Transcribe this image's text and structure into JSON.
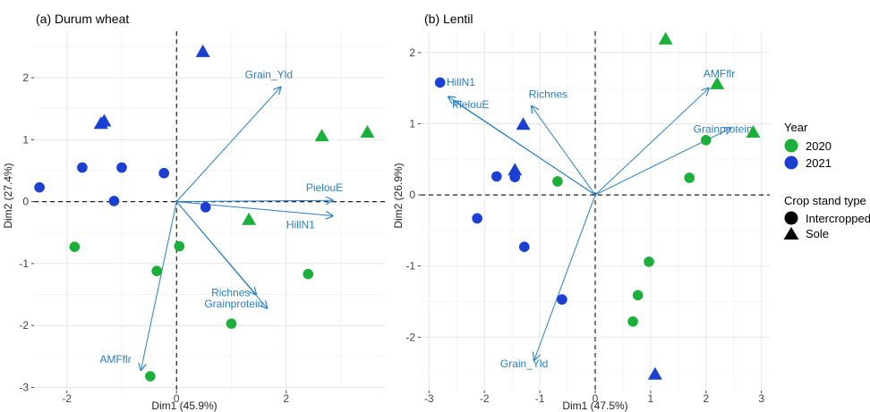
{
  "chart_data": [
    {
      "type": "scatter",
      "title": "(a) Durum wheat",
      "xlabel": "Dim1 (45.9%)",
      "ylabel": "Dim2 (27.4%)",
      "xlim": [
        -2.6,
        3.8
      ],
      "ylim": [
        -3.05,
        2.75
      ],
      "xticks": [
        -2,
        0,
        2
      ],
      "yticks": [
        -3,
        -2,
        -1,
        0,
        1,
        2
      ],
      "grid": true,
      "points": [
        {
          "x": 0.48,
          "y": 2.42,
          "year": "2021",
          "stand": "Sole"
        },
        {
          "x": -1.32,
          "y": 1.3,
          "year": "2021",
          "stand": "Sole"
        },
        {
          "x": -1.38,
          "y": 1.26,
          "year": "2021",
          "stand": "Sole"
        },
        {
          "x": -2.5,
          "y": 0.23,
          "year": "2021",
          "stand": "Intercropped"
        },
        {
          "x": -1.72,
          "y": 0.55,
          "year": "2021",
          "stand": "Intercropped"
        },
        {
          "x": -1.0,
          "y": 0.55,
          "year": "2021",
          "stand": "Intercropped"
        },
        {
          "x": -0.23,
          "y": 0.46,
          "year": "2021",
          "stand": "Intercropped"
        },
        {
          "x": -1.14,
          "y": 0.01,
          "year": "2021",
          "stand": "Intercropped"
        },
        {
          "x": 0.53,
          "y": -0.09,
          "year": "2021",
          "stand": "Intercropped"
        },
        {
          "x": 2.65,
          "y": 1.06,
          "year": "2020",
          "stand": "Sole"
        },
        {
          "x": 3.48,
          "y": 1.12,
          "year": "2020",
          "stand": "Sole"
        },
        {
          "x": 1.32,
          "y": -0.29,
          "year": "2020",
          "stand": "Sole"
        },
        {
          "x": -1.86,
          "y": -0.73,
          "year": "2020",
          "stand": "Intercropped"
        },
        {
          "x": 0.05,
          "y": -0.72,
          "year": "2020",
          "stand": "Intercropped"
        },
        {
          "x": -0.36,
          "y": -1.12,
          "year": "2020",
          "stand": "Intercropped"
        },
        {
          "x": 2.4,
          "y": -1.17,
          "year": "2020",
          "stand": "Intercropped"
        },
        {
          "x": 1.0,
          "y": -1.97,
          "year": "2020",
          "stand": "Intercropped"
        },
        {
          "x": -0.48,
          "y": -2.82,
          "year": "2020",
          "stand": "Intercropped"
        }
      ],
      "vectors": [
        {
          "label": "Grain_Yld",
          "x": 1.9,
          "y": 1.85
        },
        {
          "label": "PielouE",
          "x": 2.85,
          "y": 0.02
        },
        {
          "label": "HillN1",
          "x": 2.85,
          "y": -0.23
        },
        {
          "label": "Richnes",
          "x": 1.45,
          "y": -1.5
        },
        {
          "label": "Grainprotein",
          "x": 1.65,
          "y": -1.72
        },
        {
          "label": "AMFflr",
          "x": -0.65,
          "y": -2.72
        }
      ]
    },
    {
      "type": "scatter",
      "title": "(b) Lentil",
      "xlabel": "Dim1 (47.5%)",
      "ylabel": "Dim2 (26.9%)",
      "xlim": [
        -3.15,
        3.15
      ],
      "ylim": [
        -2.75,
        2.3
      ],
      "xticks": [
        -3,
        -2,
        -1,
        0,
        1,
        2,
        3
      ],
      "yticks": [
        -2,
        -1,
        0,
        1,
        2
      ],
      "grid": true,
      "points": [
        {
          "x": 1.27,
          "y": 2.19,
          "year": "2020",
          "stand": "Sole"
        },
        {
          "x": 2.2,
          "y": 1.56,
          "year": "2020",
          "stand": "Sole"
        },
        {
          "x": 2.85,
          "y": 0.88,
          "year": "2020",
          "stand": "Sole"
        },
        {
          "x": -1.3,
          "y": 0.99,
          "year": "2021",
          "stand": "Sole"
        },
        {
          "x": -1.45,
          "y": 0.35,
          "year": "2021",
          "stand": "Sole"
        },
        {
          "x": 1.08,
          "y": -2.52,
          "year": "2021",
          "stand": "Sole"
        },
        {
          "x": -2.8,
          "y": 1.58,
          "year": "2021",
          "stand": "Intercropped"
        },
        {
          "x": -1.78,
          "y": 0.26,
          "year": "2021",
          "stand": "Intercropped"
        },
        {
          "x": -1.45,
          "y": 0.25,
          "year": "2021",
          "stand": "Intercropped"
        },
        {
          "x": -2.13,
          "y": -0.33,
          "year": "2021",
          "stand": "Intercropped"
        },
        {
          "x": -1.28,
          "y": -0.73,
          "year": "2021",
          "stand": "Intercropped"
        },
        {
          "x": -0.6,
          "y": -1.47,
          "year": "2021",
          "stand": "Intercropped"
        },
        {
          "x": -0.68,
          "y": 0.19,
          "year": "2020",
          "stand": "Intercropped"
        },
        {
          "x": 2.0,
          "y": 0.77,
          "year": "2020",
          "stand": "Intercropped"
        },
        {
          "x": 1.7,
          "y": 0.24,
          "year": "2020",
          "stand": "Intercropped"
        },
        {
          "x": 0.97,
          "y": -0.94,
          "year": "2020",
          "stand": "Intercropped"
        },
        {
          "x": 0.77,
          "y": -1.41,
          "year": "2020",
          "stand": "Intercropped"
        },
        {
          "x": 0.68,
          "y": -1.78,
          "year": "2020",
          "stand": "Intercropped"
        }
      ],
      "vectors": [
        {
          "label": "HillN1",
          "x": -2.65,
          "y": 1.38
        },
        {
          "label": "PielouE",
          "x": -2.55,
          "y": 1.32
        },
        {
          "label": "Richnes",
          "x": -1.15,
          "y": 1.25
        },
        {
          "label": "AMFflr",
          "x": 2.05,
          "y": 1.5
        },
        {
          "label": "Grainprotein",
          "x": 2.45,
          "y": 0.94
        },
        {
          "label": "Grain_Yld",
          "x": -1.1,
          "y": -2.32
        }
      ]
    }
  ],
  "legend": {
    "placement": "right",
    "year_title": "Year",
    "years": [
      {
        "label": "2020",
        "color": "#1ab03a"
      },
      {
        "label": "2021",
        "color": "#1a3fd1"
      }
    ],
    "stand_title": "Crop stand type",
    "stands": [
      {
        "label": "Intercropped",
        "shape": "circle"
      },
      {
        "label": "Sole",
        "shape": "triangle"
      }
    ]
  },
  "colors": {
    "2020": "#1ab03a",
    "2021": "#1a3fd1",
    "vector": "#2a7fc4",
    "grid": "#ebebeb"
  }
}
